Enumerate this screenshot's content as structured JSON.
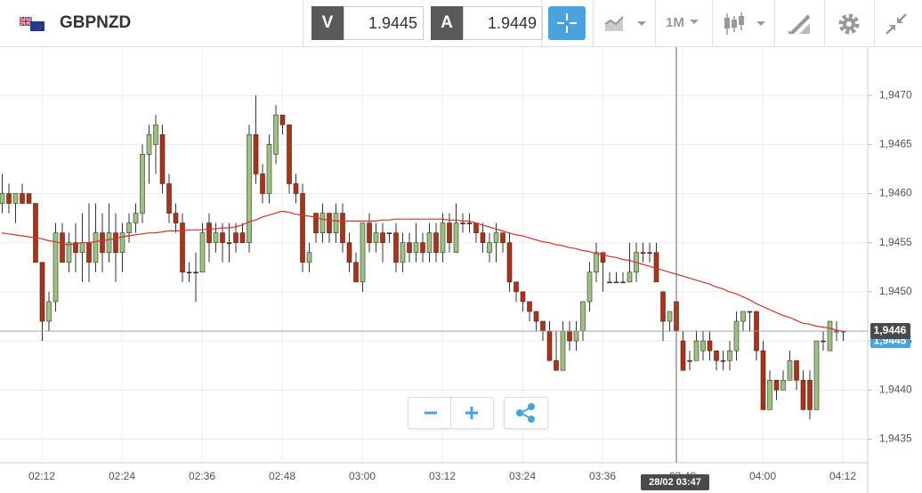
{
  "header": {
    "symbol": "GBPNZD",
    "bid_label": "V",
    "bid": "1.9445",
    "ask_label": "A",
    "ask": "1.9449",
    "timeframe": "1M"
  },
  "chart_data": {
    "type": "candlestick",
    "categories": [
      null,
      null,
      null,
      null,
      null,
      null,
      "02:12",
      null,
      null,
      null,
      null,
      null,
      null,
      null,
      null,
      null,
      null,
      null,
      "02:24",
      null,
      null,
      null,
      null,
      null,
      null,
      null,
      null,
      null,
      null,
      null,
      "02:36",
      null,
      null,
      null,
      null,
      null,
      null,
      null,
      null,
      null,
      null,
      null,
      "02:48",
      null,
      null,
      null,
      null,
      null,
      null,
      null,
      null,
      null,
      null,
      null,
      "03:00",
      null,
      null,
      null,
      null,
      null,
      null,
      null,
      null,
      null,
      null,
      null,
      "03:12",
      null,
      null,
      null,
      null,
      null,
      null,
      null,
      null,
      null,
      null,
      null,
      "03:24",
      null,
      null,
      null,
      null,
      null,
      null,
      null,
      null,
      null,
      null,
      null,
      "03:36",
      null,
      null,
      null,
      null,
      null,
      null,
      null,
      null,
      null,
      null,
      null,
      "03:48",
      null,
      null,
      null,
      null,
      null,
      null,
      null,
      null,
      null,
      null,
      null,
      "04:00",
      null,
      null,
      null,
      null,
      null,
      null,
      null,
      null,
      null,
      null,
      null,
      "04:12"
    ],
    "open": [
      1.9459,
      1.946,
      1.9459,
      1.946,
      1.946,
      1.9459,
      1.9453,
      1.9447,
      1.9449,
      1.9456,
      1.9453,
      1.9455,
      1.9454,
      1.9455,
      1.9453,
      1.9456,
      1.9454,
      1.9456,
      1.9454,
      1.9456,
      1.9457,
      1.9458,
      1.9464,
      1.9465,
      1.9466,
      1.9461,
      1.9458,
      1.9457,
      1.9452,
      1.9452,
      1.9452,
      1.9457,
      1.9455,
      1.9456,
      1.9455,
      1.9456,
      1.9456,
      1.9455,
      1.9466,
      1.9462,
      1.946,
      1.9464,
      1.9468,
      1.9467,
      1.9461,
      1.946,
      1.9453,
      1.9458,
      1.9456,
      1.9458,
      1.9456,
      1.9458,
      1.9455,
      1.9453,
      1.9451,
      1.9457,
      1.9455,
      1.9456,
      1.9456,
      1.9456,
      1.9453,
      1.9455,
      1.9454,
      1.9455,
      1.9454,
      1.9456,
      1.9454,
      1.9457,
      1.9454,
      1.9457,
      1.9457,
      1.9457,
      1.9456,
      1.9454,
      1.9455,
      1.9456,
      1.9455,
      1.9451,
      1.945,
      1.9449,
      1.9448,
      1.9447,
      1.9446,
      1.9443,
      1.9442,
      1.9446,
      1.9445,
      1.9446,
      1.9449,
      1.9452,
      1.9454,
      1.9451,
      1.9451,
      1.9451,
      1.9451,
      1.9452,
      1.9454,
      1.9454,
      1.9454,
      1.945,
      1.9447,
      1.9449,
      1.9445,
      1.9443,
      1.9443,
      1.9444,
      1.9445,
      1.9444,
      1.9443,
      1.9443,
      1.9444,
      1.9447,
      1.9448,
      1.9448,
      1.9444,
      1.9438,
      1.9441,
      1.944,
      1.9441,
      1.9443,
      1.9441,
      1.9441,
      1.9438,
      1.9445,
      1.9444,
      1.9446,
      1.9446
    ],
    "high": [
      1.9462,
      1.9461,
      1.946,
      1.9461,
      1.946,
      1.9459,
      1.9453,
      1.945,
      1.9457,
      1.9457,
      1.9456,
      1.9457,
      1.9458,
      1.9459,
      1.9459,
      1.9458,
      1.9459,
      1.9458,
      1.9457,
      1.9458,
      1.9459,
      1.9465,
      1.9467,
      1.9468,
      1.9467,
      1.9462,
      1.9459,
      1.9458,
      1.9453,
      1.9454,
      1.9457,
      1.9458,
      1.9457,
      1.9457,
      1.9457,
      1.9457,
      1.9457,
      1.9467,
      1.947,
      1.9463,
      1.9466,
      1.9469,
      1.9468,
      1.9467,
      1.9462,
      1.9461,
      1.9455,
      1.9458,
      1.9459,
      1.9458,
      1.9459,
      1.9459,
      1.9456,
      1.9454,
      1.9457,
      1.9458,
      1.9457,
      1.9457,
      1.9456,
      1.9457,
      1.9456,
      1.9456,
      1.9457,
      1.9456,
      1.9457,
      1.9457,
      1.9458,
      1.9458,
      1.9459,
      1.9458,
      1.9458,
      1.9457,
      1.9457,
      1.9456,
      1.9457,
      1.9456,
      1.9456,
      1.9451,
      1.945,
      1.9449,
      1.9448,
      1.9447,
      1.9447,
      1.9446,
      1.9447,
      1.9447,
      1.9447,
      1.9449,
      1.9453,
      1.9455,
      1.9454,
      1.9452,
      1.9452,
      1.9452,
      1.9455,
      1.9455,
      1.9455,
      1.9455,
      1.9455,
      1.945,
      1.9448,
      1.9449,
      1.9446,
      1.9444,
      1.9446,
      1.9446,
      1.9446,
      1.9444,
      1.9444,
      1.9445,
      1.9448,
      1.9448,
      1.9448,
      1.9448,
      1.9445,
      1.9442,
      1.9441,
      1.9442,
      1.9444,
      1.9443,
      1.9442,
      1.9442,
      1.9445,
      1.9446,
      1.9447,
      1.9447,
      1.9446
    ],
    "low": [
      1.9458,
      1.9458,
      1.9457,
      1.9459,
      1.9459,
      1.9453,
      1.9445,
      1.9446,
      1.9448,
      1.9453,
      1.9452,
      1.9452,
      1.9451,
      1.9451,
      1.9452,
      1.9452,
      1.9453,
      1.9451,
      1.9452,
      1.9455,
      1.9456,
      1.9457,
      1.9461,
      1.9462,
      1.946,
      1.9457,
      1.9456,
      1.9451,
      1.9451,
      1.9449,
      1.9452,
      1.9453,
      1.9454,
      1.9453,
      1.9453,
      1.9454,
      1.9455,
      1.9454,
      1.9461,
      1.9459,
      1.9459,
      1.9463,
      1.9466,
      1.946,
      1.9459,
      1.9452,
      1.9452,
      1.9455,
      1.9455,
      1.9455,
      1.9455,
      1.9454,
      1.9452,
      1.9451,
      1.945,
      1.9454,
      1.9454,
      1.9453,
      1.9455,
      1.9452,
      1.9452,
      1.9453,
      1.9453,
      1.9453,
      1.9453,
      1.9453,
      1.9453,
      1.9454,
      1.9454,
      1.9456,
      1.9456,
      1.9455,
      1.9454,
      1.9453,
      1.9453,
      1.9454,
      1.945,
      1.9449,
      1.9448,
      1.9447,
      1.9446,
      1.9445,
      1.9443,
      1.9442,
      1.9442,
      1.9444,
      1.9444,
      1.9445,
      1.9448,
      1.9451,
      1.945,
      1.9451,
      1.9451,
      1.9451,
      1.9451,
      1.9451,
      1.9453,
      1.9453,
      1.9451,
      1.9445,
      1.9446,
      1.9444,
      1.9442,
      1.9442,
      1.9443,
      1.9443,
      1.9443,
      1.9442,
      1.9442,
      1.9442,
      1.9443,
      1.9446,
      1.9446,
      1.9443,
      1.9438,
      1.9438,
      1.9439,
      1.944,
      1.9441,
      1.944,
      1.9438,
      1.9437,
      1.9438,
      1.9444,
      1.9444,
      1.9445,
      1.9445
    ],
    "close": [
      1.946,
      1.9459,
      1.946,
      1.9459,
      1.9459,
      1.9453,
      1.9447,
      1.9449,
      1.9456,
      1.9453,
      1.9455,
      1.9454,
      1.9455,
      1.9453,
      1.9456,
      1.9454,
      1.9456,
      1.9454,
      1.9456,
      1.9457,
      1.9458,
      1.9464,
      1.9466,
      1.9467,
      1.9461,
      1.9458,
      1.9457,
      1.9452,
      1.9452,
      1.9452,
      1.9456,
      1.9455,
      1.9456,
      1.9455,
      1.9455,
      1.9455,
      1.9455,
      1.9466,
      1.9462,
      1.946,
      1.9465,
      1.9468,
      1.9467,
      1.9461,
      1.946,
      1.9453,
      1.9454,
      1.9456,
      1.9458,
      1.9456,
      1.9458,
      1.9455,
      1.9453,
      1.9451,
      1.9457,
      1.9455,
      1.9456,
      1.9455,
      1.9456,
      1.9453,
      1.9455,
      1.9454,
      1.9455,
      1.9454,
      1.9456,
      1.9454,
      1.9457,
      1.9455,
      1.9457,
      1.9457,
      1.9457,
      1.9456,
      1.9455,
      1.9455,
      1.9456,
      1.9455,
      1.9451,
      1.945,
      1.9449,
      1.9448,
      1.9447,
      1.9446,
      1.9443,
      1.9442,
      1.9446,
      1.9445,
      1.9446,
      1.9449,
      1.9452,
      1.9454,
      1.9453,
      1.9451,
      1.9451,
      1.9451,
      1.9452,
      1.9454,
      1.9454,
      1.9454,
      1.9451,
      1.9447,
      1.9448,
      1.9446,
      1.9442,
      1.9443,
      1.9445,
      1.9445,
      1.9444,
      1.9443,
      1.9443,
      1.9444,
      1.9447,
      1.9448,
      1.9448,
      1.9444,
      1.9438,
      1.9441,
      1.944,
      1.9441,
      1.9443,
      1.9441,
      1.9438,
      1.9438,
      1.9445,
      1.9445,
      1.9447,
      1.9446,
      1.9446
    ],
    "up_color": "#9dc183",
    "down_color": "#a3361c",
    "moving_average": {
      "color": "#d9302c",
      "values": [
        1.9456,
        1.94559,
        1.94558,
        1.94557,
        1.94556,
        1.94555,
        1.94554,
        1.94552,
        1.94551,
        1.94549,
        1.94548,
        1.94549,
        1.9455,
        1.9455,
        1.94551,
        1.94552,
        1.94553,
        1.94554,
        1.94556,
        1.94557,
        1.94558,
        1.94559,
        1.9456,
        1.9456,
        1.94561,
        1.94562,
        1.94562,
        1.94562,
        1.94563,
        1.94563,
        1.94563,
        1.94564,
        1.94564,
        1.94565,
        1.94565,
        1.94566,
        1.94568,
        1.94571,
        1.94573,
        1.94576,
        1.94578,
        1.9458,
        1.94582,
        1.94581,
        1.94579,
        1.94578,
        1.94577,
        1.94576,
        1.94574,
        1.94573,
        1.94572,
        1.94572,
        1.94572,
        1.94572,
        1.94572,
        1.94572,
        1.94572,
        1.94573,
        1.94573,
        1.94574,
        1.94574,
        1.94574,
        1.94574,
        1.94574,
        1.94574,
        1.94574,
        1.94574,
        1.94573,
        1.94573,
        1.94572,
        1.94572,
        1.9457,
        1.94568,
        1.94566,
        1.94564,
        1.94562,
        1.9456,
        1.94558,
        1.94557,
        1.94555,
        1.94553,
        1.94551,
        1.9455,
        1.94548,
        1.94547,
        1.94545,
        1.94544,
        1.94542,
        1.94541,
        1.94539,
        1.94538,
        1.94536,
        1.94535,
        1.94533,
        1.94532,
        1.9453,
        1.94528,
        1.94526,
        1.94524,
        1.94522,
        1.9452,
        1.94518,
        1.94516,
        1.94514,
        1.94512,
        1.9451,
        1.94508,
        1.94505,
        1.94503,
        1.945,
        1.94498,
        1.94495,
        1.94492,
        1.94488,
        1.94485,
        1.94482,
        1.94479,
        1.94476,
        1.94474,
        1.94471,
        1.94468,
        1.94467,
        1.94465,
        1.94464,
        1.94463,
        1.94461,
        1.9446
      ]
    },
    "ylim": [
      1.94326,
      1.94749
    ],
    "yticks": [
      {
        "value": 1.9435,
        "label": "1,9435"
      },
      {
        "value": 1.944,
        "label": "1,9440"
      },
      {
        "value": 1.9445,
        "label": "1,9445"
      },
      {
        "value": 1.945,
        "label": "1,9450"
      },
      {
        "value": 1.9455,
        "label": "1,9455"
      },
      {
        "value": 1.946,
        "label": "1,9460"
      },
      {
        "value": 1.9465,
        "label": "1,9465"
      },
      {
        "value": 1.947,
        "label": "1,9470"
      }
    ],
    "grid": true,
    "last_price": {
      "value": 1.9446,
      "label": "1,9446"
    },
    "bid_price": {
      "value": 1.9445,
      "label": "1,9445"
    },
    "crosshair_label": "28/02 03:47"
  }
}
